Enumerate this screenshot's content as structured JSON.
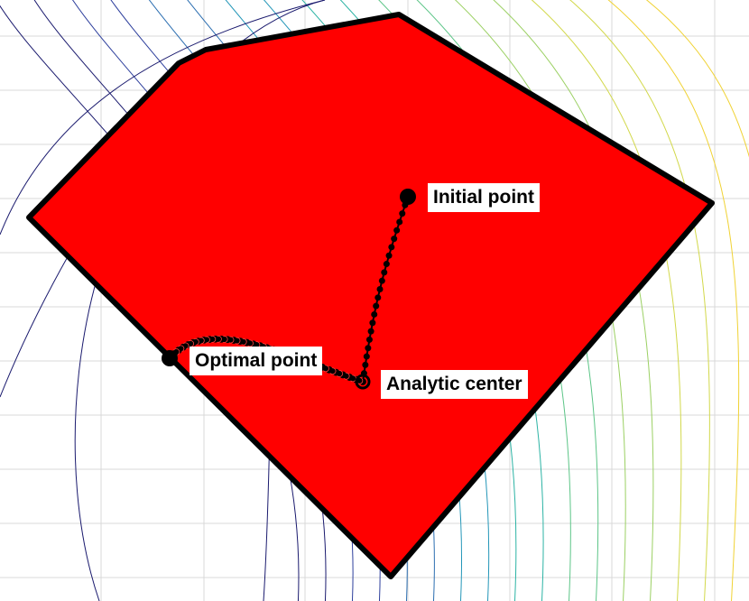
{
  "colors": {
    "background": "#ffffff",
    "grid": "#d9d9d9",
    "region_fill": "#ff0000",
    "region_edge": "#000000",
    "path_marker": "#000000",
    "path_marker_late": "#ff4040",
    "contour_colormap": [
      "#1a1a6e",
      "#2c3e9c",
      "#2a6db0",
      "#2396b8",
      "#2bb3a4",
      "#5cc587",
      "#9bd063",
      "#d2d84a",
      "#f0d234"
    ]
  },
  "labels": {
    "initial_point": "Initial point",
    "optimal_point": "Optimal point",
    "analytic_center": "Analytic center"
  },
  "features": {
    "grid": true,
    "contour_levels": 20,
    "path_markers": "filled black dots along the central path from initial point to analytic center, then to optimal point"
  }
}
